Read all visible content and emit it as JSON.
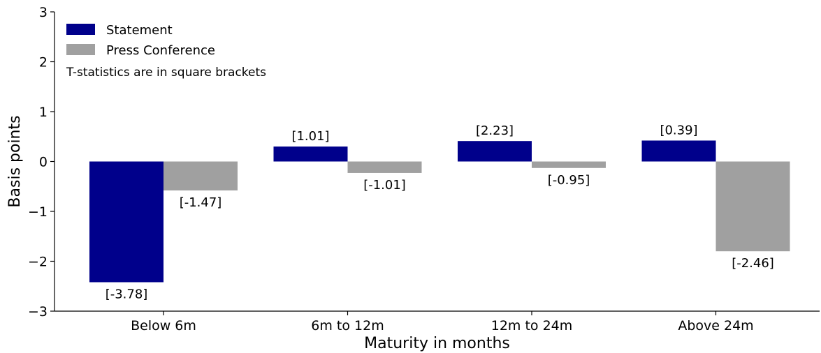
{
  "chart_data": {
    "type": "bar",
    "categories": [
      "Below 6m",
      "6m to 12m",
      "12m to 24m",
      "Above 24m"
    ],
    "series": [
      {
        "name": "Statement",
        "color": "#00008b",
        "values": [
          -2.42,
          0.3,
          0.41,
          0.42
        ],
        "labels": [
          "[-3.78]",
          "[1.01]",
          "[2.23]",
          "[0.39]"
        ]
      },
      {
        "name": "Press Conference",
        "color": "#a0a0a0",
        "values": [
          -0.58,
          -0.23,
          -0.13,
          -1.8
        ],
        "labels": [
          "[-1.47]",
          "[-1.01]",
          "[-0.95]",
          "[-2.46]"
        ]
      }
    ],
    "xlabel": "Maturity in months",
    "ylabel": "Basis points",
    "ylim": [
      -3,
      3
    ],
    "yticks": [
      -3,
      -2,
      -1,
      0,
      1,
      2,
      3
    ],
    "ytick_labels": [
      "−3",
      "−2",
      "−1",
      "0",
      "1",
      "2",
      "3"
    ],
    "annotation": "T-statistics are in square brackets",
    "legend_position": "top-left",
    "grid": false
  }
}
